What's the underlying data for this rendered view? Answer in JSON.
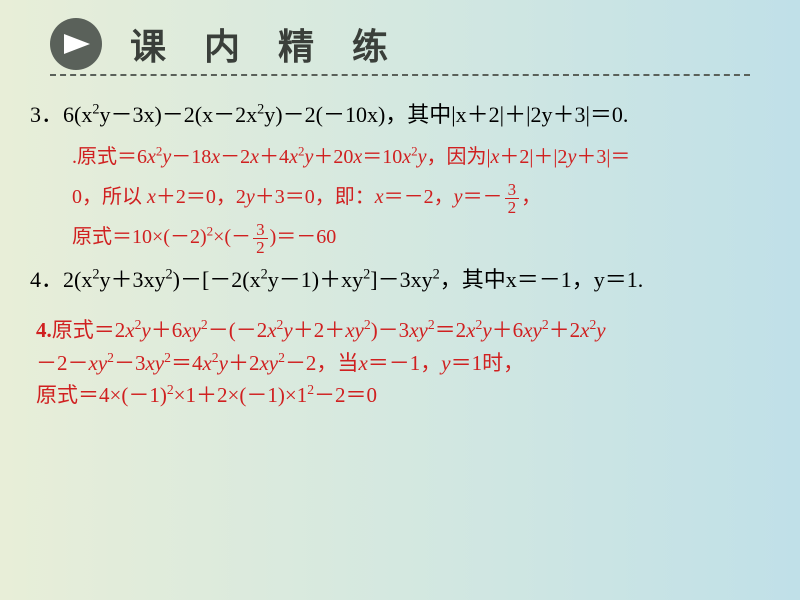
{
  "header": {
    "title": "课 内 精 练",
    "title_fontsize": 36,
    "title_color": "#3a3f3a",
    "title_letter_spacing": 14,
    "icon_bg": "#5a615a",
    "underline_color": "#5a615a",
    "underline_style": "dashed"
  },
  "background": {
    "gradient_from": "#e8eed8",
    "gradient_mid": "#d4e8e0",
    "gradient_to": "#c0e0e8"
  },
  "problems": [
    {
      "number": "3",
      "expression": "6(x²y－3x)－2(x－2x²y)－2(－10x)，其中|x＋2|＋|2y＋3|＝0.",
      "solution_lines": [
        ".原式＝6x²y－18x－2x＋4x²y＋20x＝10x²y，因为|x＋2|＋|2y＋3|＝",
        "0，所以 x＋2＝0，2y＋3＝0，即：x＝－2，y＝－3/2，",
        "原式＝10×(－2)²×(－3/2)＝－60"
      ]
    },
    {
      "number": "4",
      "expression": "2(x²y＋3xy²)－[－2(x²y－1)＋xy²]－3xy²，其中x＝－1，y＝1.",
      "solution_lines": [
        "4.原式＝2x²y＋6xy²－(－2x²y＋2＋xy²)－3xy²＝2x²y＋6xy²＋2x²y",
        "－2－xy²－3xy²＝4x²y＋2xy²－2，当x＝－1，y＝1时，",
        "原式＝4×(－1)²×1＋2×(－1)×1²－2＝0"
      ]
    }
  ],
  "styles": {
    "problem_color": "#000000",
    "problem_fontsize": 22,
    "solution_color": "#d02020",
    "solution_fontsize": 20
  }
}
